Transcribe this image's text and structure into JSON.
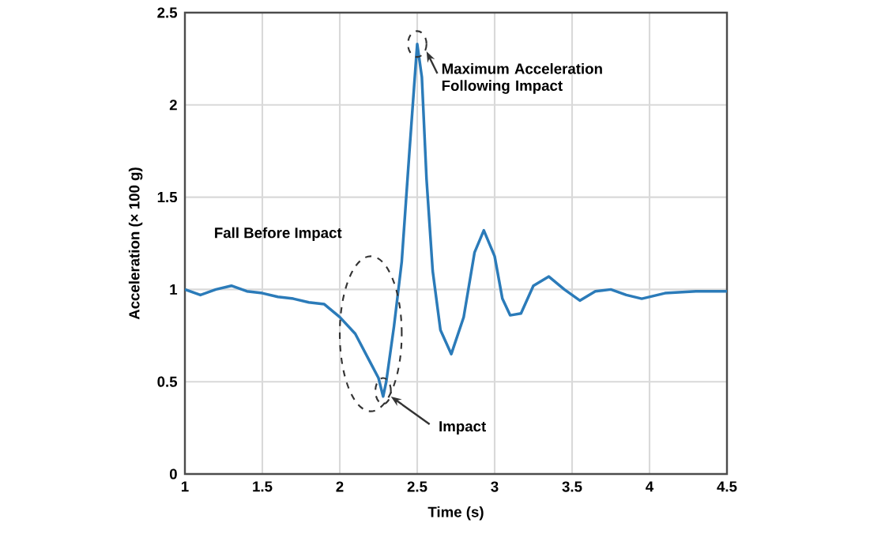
{
  "chart_data": {
    "type": "line",
    "xlabel": "Time (s)",
    "ylabel": "Acceleration (× 100 g)",
    "x": [
      1.0,
      1.1,
      1.2,
      1.3,
      1.4,
      1.5,
      1.6,
      1.7,
      1.8,
      1.9,
      2.0,
      2.1,
      2.2,
      2.25,
      2.28,
      2.3,
      2.35,
      2.4,
      2.45,
      2.48,
      2.5,
      2.53,
      2.56,
      2.6,
      2.65,
      2.72,
      2.8,
      2.87,
      2.93,
      3.0,
      3.05,
      3.1,
      3.17,
      3.25,
      3.35,
      3.45,
      3.55,
      3.65,
      3.75,
      3.85,
      3.95,
      4.1,
      4.3,
      4.5
    ],
    "series": [
      {
        "color": "#2b7bb9",
        "values": [
          1.0,
          0.97,
          1.0,
          1.02,
          0.99,
          0.98,
          0.96,
          0.95,
          0.93,
          0.92,
          0.85,
          0.76,
          0.6,
          0.52,
          0.42,
          0.5,
          0.8,
          1.15,
          1.75,
          2.1,
          2.33,
          2.15,
          1.6,
          1.1,
          0.78,
          0.65,
          0.85,
          1.2,
          1.32,
          1.18,
          0.95,
          0.86,
          0.87,
          1.02,
          1.07,
          1.0,
          0.94,
          0.99,
          1.0,
          0.97,
          0.95,
          0.98,
          0.99,
          0.99
        ]
      }
    ],
    "xlim": [
      1,
      4.5
    ],
    "xticks": [
      1,
      1.5,
      2,
      2.5,
      3,
      3.5,
      4,
      4.5
    ],
    "ylim": [
      0,
      2.5
    ],
    "yticks": [
      0,
      0.5,
      1,
      1.5,
      2,
      2.5
    ],
    "grid": true,
    "marker": "none",
    "line_style": "solid",
    "annotations": [
      "Fall Before Impact",
      {
        "text": "Impact",
        "x": 2.28,
        "y": 0.42
      },
      {
        "text": "Maximum Acceleration Following Impact",
        "x": 2.5,
        "y": 2.33
      }
    ]
  }
}
